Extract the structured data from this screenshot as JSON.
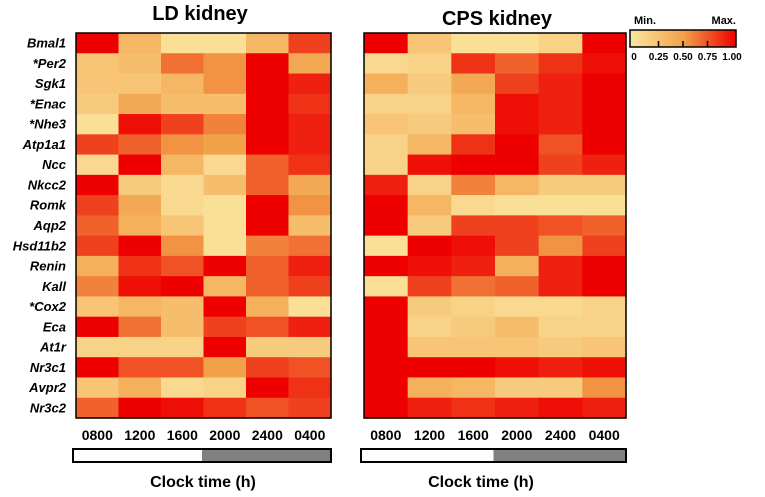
{
  "chart_data": {
    "type": "heatmap",
    "genes": [
      "Bmal1",
      "*Per2",
      "Sgk1",
      "*Enac",
      "*Nhe3",
      "Atp1a1",
      "Ncc",
      "Nkcc2",
      "Romk",
      "Aqp2",
      "Hsd11b2",
      "Renin",
      "Kall",
      "*Cox2",
      "Eca",
      "At1r",
      "Nr3c1",
      "Avpr2",
      "Nr3c2"
    ],
    "times": [
      "0800",
      "1200",
      "1600",
      "2000",
      "2400",
      "0400"
    ],
    "xlabel": "Clock time (h)",
    "colorscale": {
      "min_label": "Min.",
      "max_label": "Max.",
      "ticks": [
        "0",
        "0.25",
        "0.50",
        "0.75",
        "1.00"
      ],
      "low_color": "#fbe7a0",
      "mid_color": "#f2a24a",
      "high_color": "#ee0000"
    },
    "panels": [
      {
        "title": "LD kidney",
        "light_dark_bar": {
          "light_fraction": 0.5
        },
        "values": [
          [
            1.0,
            0.35,
            0.05,
            0.05,
            0.35,
            0.8
          ],
          [
            0.25,
            0.3,
            0.65,
            0.55,
            1.0,
            0.45
          ],
          [
            0.25,
            0.25,
            0.35,
            0.55,
            1.0,
            0.9
          ],
          [
            0.2,
            0.45,
            0.3,
            0.3,
            1.0,
            0.85
          ],
          [
            0.05,
            0.95,
            0.8,
            0.6,
            1.0,
            0.9
          ],
          [
            0.8,
            0.7,
            0.55,
            0.5,
            1.0,
            0.9
          ],
          [
            0.1,
            1.0,
            0.35,
            0.1,
            0.7,
            0.85
          ],
          [
            1.0,
            0.2,
            0.1,
            0.3,
            0.7,
            0.45
          ],
          [
            0.8,
            0.45,
            0.1,
            0.05,
            1.0,
            0.55
          ],
          [
            0.7,
            0.4,
            0.25,
            0.05,
            1.0,
            0.3
          ],
          [
            0.8,
            1.0,
            0.55,
            0.05,
            0.6,
            0.65
          ],
          [
            0.4,
            0.85,
            0.75,
            1.0,
            0.7,
            0.9
          ],
          [
            0.6,
            0.95,
            1.0,
            0.35,
            0.7,
            0.8
          ],
          [
            0.25,
            0.35,
            0.3,
            1.0,
            0.4,
            0.05
          ],
          [
            1.0,
            0.65,
            0.3,
            0.8,
            0.75,
            0.9
          ],
          [
            0.15,
            0.15,
            0.15,
            1.0,
            0.2,
            0.2
          ],
          [
            1.0,
            0.75,
            0.75,
            0.5,
            0.8,
            0.75
          ],
          [
            0.25,
            0.4,
            0.1,
            0.15,
            1.0,
            0.85
          ],
          [
            0.7,
            1.0,
            0.95,
            0.85,
            0.75,
            0.8
          ]
        ]
      },
      {
        "title": "CPS kidney",
        "light_dark_bar": {
          "light_fraction": 0.5
        },
        "values": [
          [
            1.0,
            0.25,
            0.05,
            0.05,
            0.15,
            1.0
          ],
          [
            0.1,
            0.15,
            0.85,
            0.7,
            0.85,
            0.95
          ],
          [
            0.4,
            0.2,
            0.45,
            0.8,
            0.9,
            1.0
          ],
          [
            0.15,
            0.15,
            0.35,
            0.95,
            0.9,
            1.0
          ],
          [
            0.25,
            0.2,
            0.3,
            0.95,
            0.9,
            1.0
          ],
          [
            0.15,
            0.35,
            0.85,
            1.0,
            0.75,
            1.0
          ],
          [
            0.15,
            0.95,
            1.0,
            1.0,
            0.8,
            0.9
          ],
          [
            0.9,
            0.15,
            0.6,
            0.35,
            0.2,
            0.2
          ],
          [
            1.0,
            0.35,
            0.1,
            0.05,
            0.05,
            0.05
          ],
          [
            1.0,
            0.2,
            0.8,
            0.8,
            0.75,
            0.7
          ],
          [
            0.05,
            1.0,
            0.95,
            0.8,
            0.55,
            0.8
          ],
          [
            1.0,
            0.95,
            0.9,
            0.4,
            0.9,
            1.0
          ],
          [
            0.05,
            0.8,
            0.65,
            0.7,
            0.9,
            1.0
          ],
          [
            1.0,
            0.2,
            0.15,
            0.1,
            0.1,
            0.15
          ],
          [
            1.0,
            0.15,
            0.2,
            0.3,
            0.15,
            0.15
          ],
          [
            1.0,
            0.25,
            0.25,
            0.25,
            0.2,
            0.25
          ],
          [
            1.0,
            1.0,
            1.0,
            0.95,
            0.9,
            0.95
          ],
          [
            1.0,
            0.4,
            0.35,
            0.2,
            0.2,
            0.55
          ],
          [
            1.0,
            0.9,
            0.85,
            0.9,
            0.95,
            0.9
          ]
        ]
      }
    ]
  }
}
